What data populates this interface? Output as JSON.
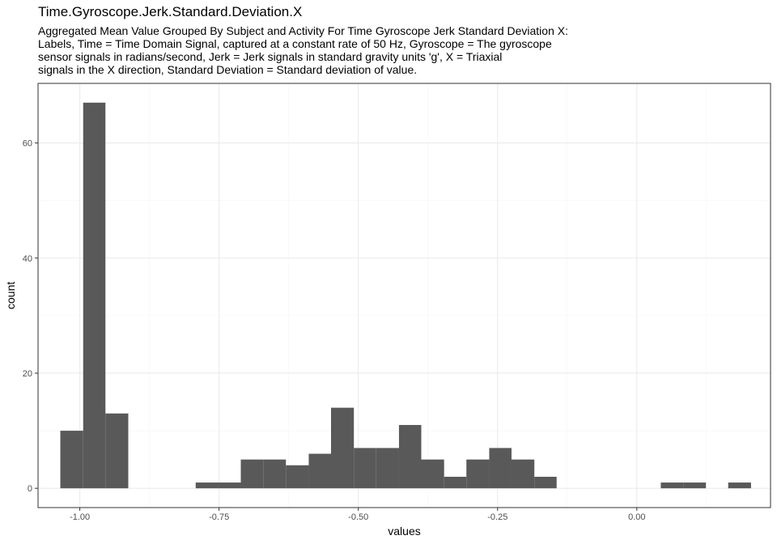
{
  "chart_data": {
    "type": "bar",
    "title": "Time.Gyroscope.Jerk.Standard.Deviation.X",
    "subtitle_lines": [
      "Aggregated Mean Value Grouped By Subject and Activity For Time Gyroscope Jerk Standard Deviation X:",
      "Labels, Time = Time Domain Signal, captured at a constant rate of 50 Hz, Gyroscope = The gyroscope",
      "sensor signals in radians/second, Jerk = Jerk signals in standard gravity units 'g', X = Triaxial",
      "signals in the X direction, Standard Deviation = Standard deviation of value."
    ],
    "xlabel": "values",
    "ylabel": "count",
    "xlim": [
      -1.075,
      0.24
    ],
    "ylim": [
      -3.35,
      70.35
    ],
    "x_ticks": [
      {
        "value": -1.0,
        "label": "-1.00"
      },
      {
        "value": -0.75,
        "label": "-0.75"
      },
      {
        "value": -0.5,
        "label": "-0.50"
      },
      {
        "value": -0.25,
        "label": "-0.25"
      },
      {
        "value": 0.0,
        "label": "0.00"
      }
    ],
    "y_ticks": [
      {
        "value": 0,
        "label": "0"
      },
      {
        "value": 20,
        "label": "20"
      },
      {
        "value": 40,
        "label": "40"
      },
      {
        "value": 60,
        "label": "60"
      }
    ],
    "grid": true,
    "bin_width": 0.0405,
    "bins": [
      {
        "x0": -1.035,
        "x1": -0.994,
        "count": 10
      },
      {
        "x0": -0.994,
        "x1": -0.954,
        "count": 67
      },
      {
        "x0": -0.954,
        "x1": -0.913,
        "count": 13
      },
      {
        "x0": -0.792,
        "x1": -0.751,
        "count": 1
      },
      {
        "x0": -0.751,
        "x1": -0.711,
        "count": 1
      },
      {
        "x0": -0.711,
        "x1": -0.67,
        "count": 5
      },
      {
        "x0": -0.67,
        "x1": -0.63,
        "count": 5
      },
      {
        "x0": -0.63,
        "x1": -0.589,
        "count": 4
      },
      {
        "x0": -0.589,
        "x1": -0.549,
        "count": 6
      },
      {
        "x0": -0.549,
        "x1": -0.508,
        "count": 14
      },
      {
        "x0": -0.508,
        "x1": -0.468,
        "count": 7
      },
      {
        "x0": -0.468,
        "x1": -0.427,
        "count": 7
      },
      {
        "x0": -0.427,
        "x1": -0.387,
        "count": 11
      },
      {
        "x0": -0.387,
        "x1": -0.346,
        "count": 5
      },
      {
        "x0": -0.346,
        "x1": -0.306,
        "count": 2
      },
      {
        "x0": -0.306,
        "x1": -0.265,
        "count": 5
      },
      {
        "x0": -0.265,
        "x1": -0.225,
        "count": 7
      },
      {
        "x0": -0.225,
        "x1": -0.184,
        "count": 5
      },
      {
        "x0": -0.184,
        "x1": -0.144,
        "count": 2
      },
      {
        "x0": 0.043,
        "x1": 0.084,
        "count": 1
      },
      {
        "x0": 0.084,
        "x1": 0.124,
        "count": 1
      },
      {
        "x0": 0.164,
        "x1": 0.205,
        "count": 1
      }
    ],
    "bar_color": "#595959",
    "panel_border_color": "#333333",
    "grid_major_color": "#ebebeb",
    "grid_minor_color": "#f5f5f5"
  }
}
